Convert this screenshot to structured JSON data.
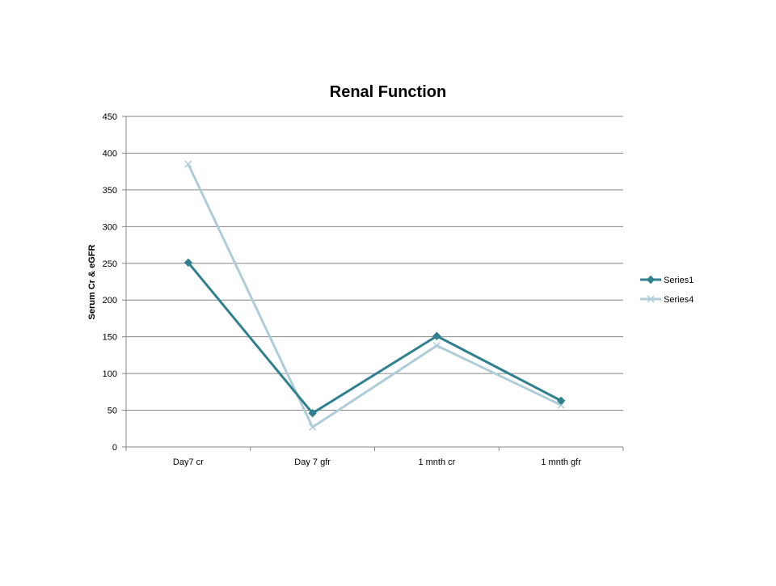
{
  "chart_data": {
    "type": "line",
    "title": "Renal Function",
    "xlabel": "",
    "ylabel": "Serum Cr & eGFR",
    "categories": [
      "Day7 cr",
      "Day 7 gfr",
      "1 mnth cr",
      "1 mnth gfr"
    ],
    "ylim": [
      0,
      450
    ],
    "yticks": [
      0,
      50,
      100,
      150,
      200,
      250,
      300,
      350,
      400,
      450
    ],
    "grid": true,
    "legend_position": "right",
    "series": [
      {
        "name": "Series1",
        "values": [
          251,
          46,
          151,
          63
        ],
        "color": "#31808f",
        "marker": "diamond"
      },
      {
        "name": "Series4",
        "values": [
          385,
          27,
          138,
          57
        ],
        "color": "#afcdd8",
        "marker": "x"
      }
    ]
  }
}
